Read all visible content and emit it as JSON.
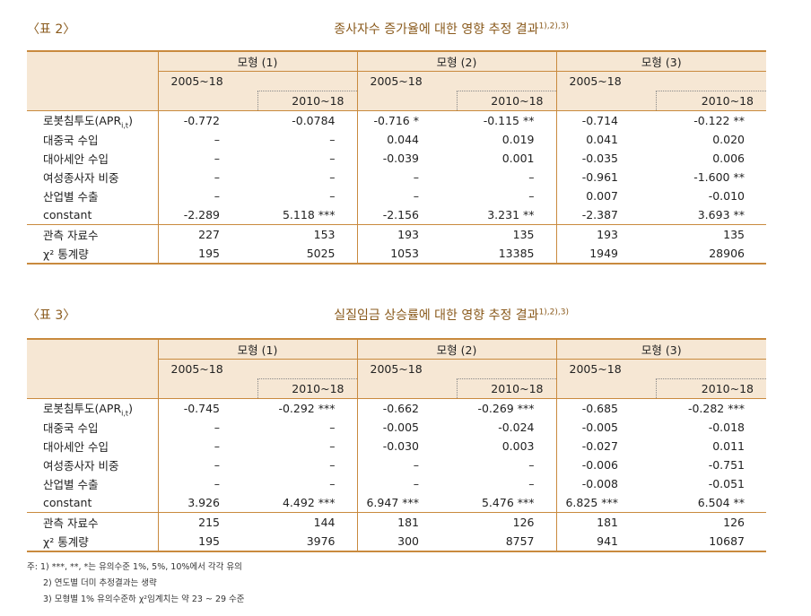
{
  "table2": {
    "label": "〈표 2〉",
    "title": "종사자수 증가율에 대한 영향 추정 결과",
    "title_sup": "1),2),3)",
    "models": [
      "모형 (1)",
      "모형 (2)",
      "모형 (3)"
    ],
    "period_a": "2005~18",
    "period_b": "2010~18",
    "rows": [
      {
        "label": "로봇침투도(APR",
        "sub": "i,t",
        "tail": ")",
        "vals": [
          "-0.772",
          "-0.0784",
          "-0.716 *",
          "-0.115 **",
          "-0.714",
          "-0.122 **"
        ]
      },
      {
        "label": "대중국 수입",
        "vals": [
          "–",
          "–",
          "0.044",
          "0.019",
          "0.041",
          "0.020"
        ]
      },
      {
        "label": "대아세안 수입",
        "vals": [
          "–",
          "–",
          "-0.039",
          "0.001",
          "-0.035",
          "0.006"
        ]
      },
      {
        "label": "여성종사자 비중",
        "vals": [
          "–",
          "–",
          "–",
          "–",
          "-0.961",
          "-1.600 **"
        ]
      },
      {
        "label": "산업별 수출",
        "vals": [
          "–",
          "–",
          "–",
          "–",
          "0.007",
          "-0.010"
        ]
      },
      {
        "label": "constant",
        "vals": [
          "-2.289",
          "5.118 ***",
          "-2.156",
          "3.231 **",
          "-2.387",
          "3.693 **"
        ]
      }
    ],
    "stats": [
      {
        "label": "관측 자료수",
        "vals": [
          "227",
          "153",
          "193",
          "135",
          "193",
          "135"
        ]
      },
      {
        "label": "χ² 통계량",
        "vals": [
          "195",
          "5025",
          "1053",
          "13385",
          "1949",
          "28906"
        ]
      }
    ]
  },
  "table3": {
    "label": "〈표 3〉",
    "title": "실질임금 상승률에 대한 영향 추정 결과",
    "title_sup": "1),2),3)",
    "models": [
      "모형 (1)",
      "모형 (2)",
      "모형 (3)"
    ],
    "period_a": "2005~18",
    "period_b": "2010~18",
    "rows": [
      {
        "label": "로봇침투도(APR",
        "sub": "i,t",
        "tail": ")",
        "vals": [
          "-0.745",
          "-0.292 ***",
          "-0.662",
          "-0.269 ***",
          "-0.685",
          "-0.282 ***"
        ]
      },
      {
        "label": "대중국 수입",
        "vals": [
          "–",
          "–",
          "-0.005",
          "-0.024",
          "-0.005",
          "-0.018"
        ]
      },
      {
        "label": "대아세안 수입",
        "vals": [
          "–",
          "–",
          "-0.030",
          "0.003",
          "-0.027",
          "0.011"
        ]
      },
      {
        "label": "여성종사자 비중",
        "vals": [
          "–",
          "–",
          "–",
          "–",
          "-0.006",
          "-0.751"
        ]
      },
      {
        "label": "산업별 수출",
        "vals": [
          "–",
          "–",
          "–",
          "–",
          "-0.008",
          "-0.051"
        ]
      },
      {
        "label": "constant",
        "vals": [
          "3.926",
          "4.492 ***",
          "6.947 ***",
          "5.476 ***",
          "6.825 ***",
          "6.504 **"
        ]
      }
    ],
    "stats": [
      {
        "label": "관측 자료수",
        "vals": [
          "215",
          "144",
          "181",
          "126",
          "181",
          "126"
        ]
      },
      {
        "label": "χ² 통계량",
        "vals": [
          "195",
          "3976",
          "300",
          "8757",
          "941",
          "10687"
        ]
      }
    ]
  },
  "notes": {
    "n1": "주: 1) ***, **, *는 유의수준 1%, 5%, 10%에서 각각 유의",
    "n2": "2) 연도별 더미 추정결과는 생략",
    "n3": "3) 모형별 1% 유의수준하 χ²임계치는 약 23 ~ 29 수준"
  }
}
